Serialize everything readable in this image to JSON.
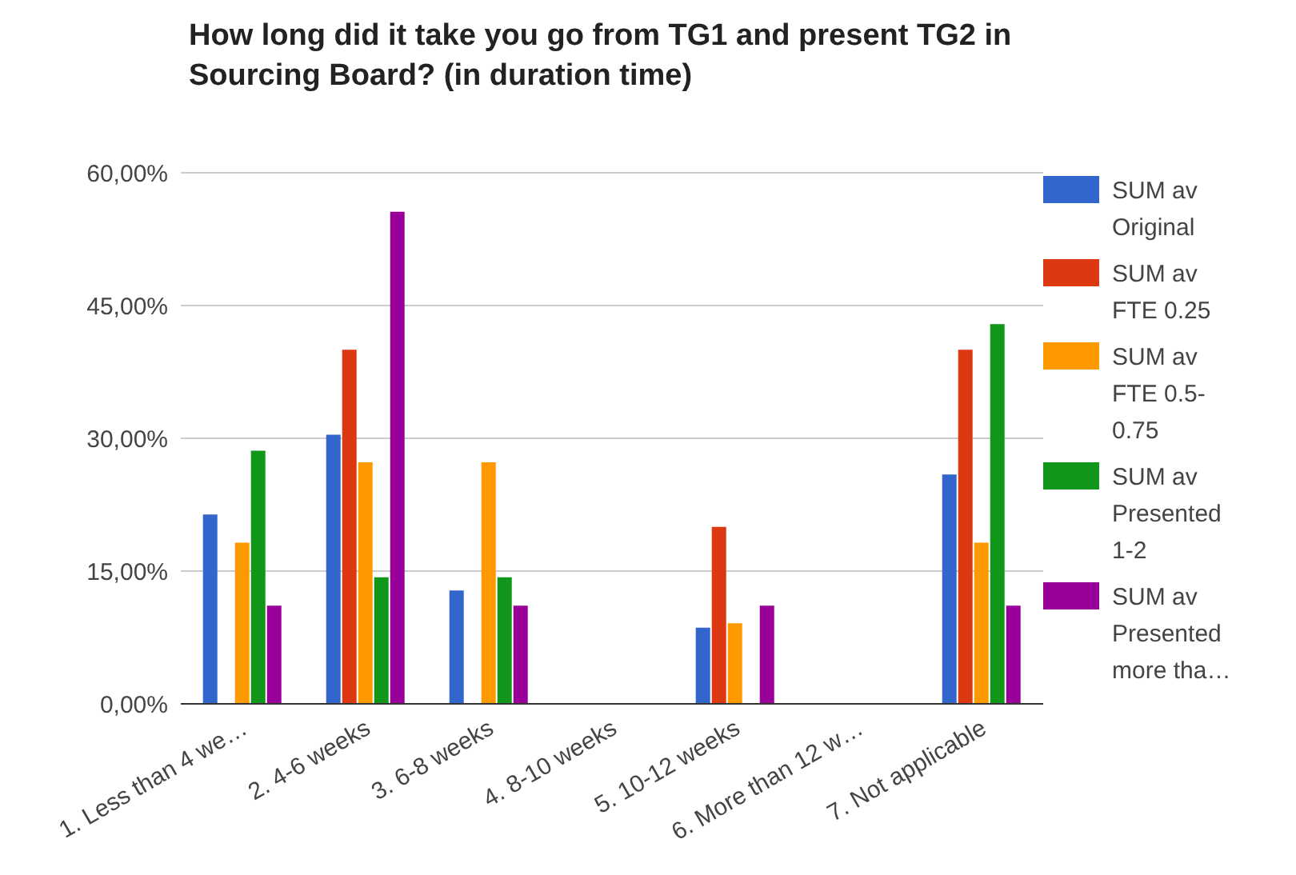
{
  "chart_data": {
    "type": "bar",
    "title": "How long did it take you go from TG1 and present TG2 in Sourcing Board? (in duration time)",
    "categories": [
      "1. Less than 4 we…",
      "2. 4-6 weeks",
      "3. 6-8 weeks",
      "4. 8-10 weeks",
      "5. 10-12 weeks",
      "6. More than 12 w…",
      "7. Not applicable"
    ],
    "series": [
      {
        "name": "SUM av Original",
        "color": "#3366cc",
        "values": [
          21.4,
          30.4,
          12.8,
          0,
          8.6,
          0,
          25.9
        ]
      },
      {
        "name": "SUM av FTE 0.25",
        "color": "#dc3912",
        "values": [
          0,
          40,
          0,
          0,
          20,
          0,
          40
        ]
      },
      {
        "name": "SUM av FTE 0.5-0.75",
        "color": "#ff9900",
        "values": [
          18.2,
          27.3,
          27.3,
          0,
          9.1,
          0,
          18.2
        ]
      },
      {
        "name": "SUM av Presented 1-2",
        "color": "#109618",
        "values": [
          28.6,
          14.3,
          14.3,
          0,
          0,
          0,
          42.9
        ]
      },
      {
        "name": "SUM av Presented more tha…",
        "color": "#990099",
        "values": [
          11.1,
          55.6,
          11.1,
          0,
          11.1,
          0,
          11.1
        ]
      }
    ],
    "ylim": [
      0,
      60
    ],
    "yticks": [
      {
        "value": 0,
        "label": "0,00%"
      },
      {
        "value": 15,
        "label": "15,00%"
      },
      {
        "value": 30,
        "label": "30,00%"
      },
      {
        "value": 45,
        "label": "45,00%"
      },
      {
        "value": 60,
        "label": "60,00%"
      }
    ],
    "grid": "y",
    "legend": "right"
  }
}
